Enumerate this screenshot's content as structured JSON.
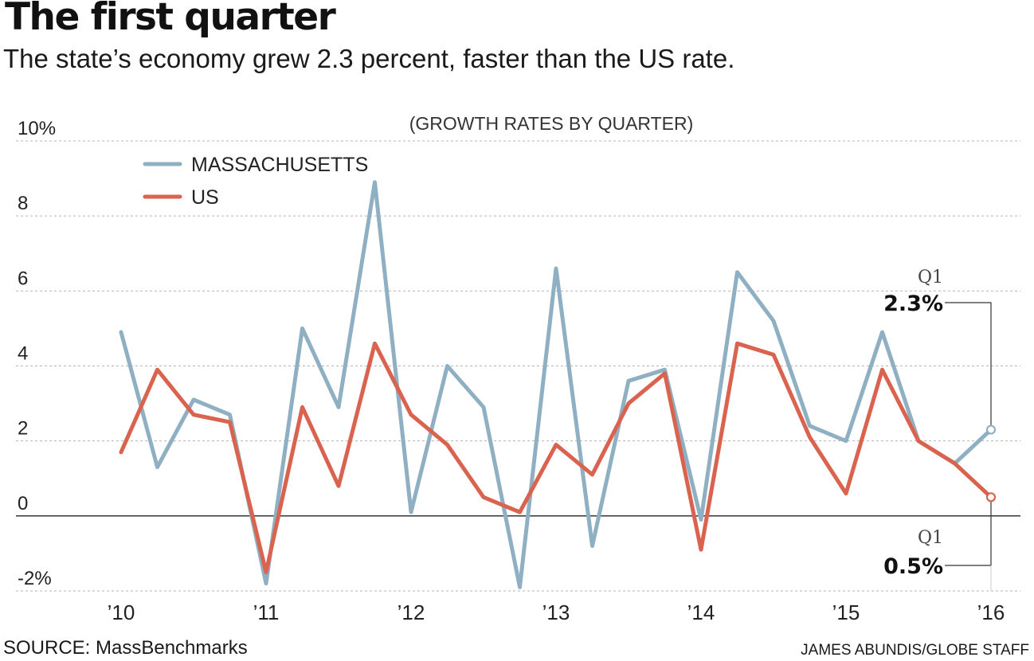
{
  "header": {
    "title": "The first quarter",
    "subtitle": "The state’s economy grew 2.3 percent, faster than the US rate."
  },
  "footer": {
    "source": "SOURCE: MassBenchmarks",
    "credit": "JAMES ABUNDIS/GLOBE STAFF"
  },
  "chart_data": {
    "type": "line",
    "title": "The first quarter",
    "subtitle": "(GROWTH RATES BY QUARTER)",
    "x_tick_labels": [
      "’10",
      "’11",
      "’12",
      "’13",
      "’14",
      "’15",
      "’16"
    ],
    "y_tick_labels": [
      "10%",
      "8",
      "6",
      "4",
      "2",
      "0",
      "-2%"
    ],
    "y_ticks": [
      10,
      8,
      6,
      4,
      2,
      0,
      -2
    ],
    "ylim": [
      -2,
      10
    ],
    "x_quarter_range": [
      0,
      24
    ],
    "grid": true,
    "legend_position": "top-left",
    "series": [
      {
        "name": "MASSACHUSETTS",
        "color": "#8FB0C3",
        "values": [
          4.9,
          1.3,
          3.1,
          2.7,
          -1.8,
          5.0,
          2.9,
          8.9,
          0.1,
          4.0,
          2.9,
          -1.9,
          6.6,
          -0.8,
          3.6,
          3.9,
          -0.1,
          6.5,
          5.2,
          2.4,
          2.0,
          4.9,
          2.0,
          1.4,
          2.3
        ]
      },
      {
        "name": "US",
        "color": "#D9634E",
        "values": [
          1.7,
          3.9,
          2.7,
          2.5,
          -1.5,
          2.9,
          0.8,
          4.6,
          2.7,
          1.9,
          0.5,
          0.1,
          1.9,
          1.1,
          3.0,
          3.8,
          -0.9,
          4.6,
          4.3,
          2.1,
          0.6,
          3.9,
          2.0,
          1.4,
          0.5
        ]
      }
    ],
    "annotations": [
      {
        "label": "Q1",
        "value": "2.3%",
        "series": "MASSACHUSETTS",
        "placement": "above"
      },
      {
        "label": "Q1",
        "value": "0.5%",
        "series": "US",
        "placement": "below"
      }
    ]
  }
}
